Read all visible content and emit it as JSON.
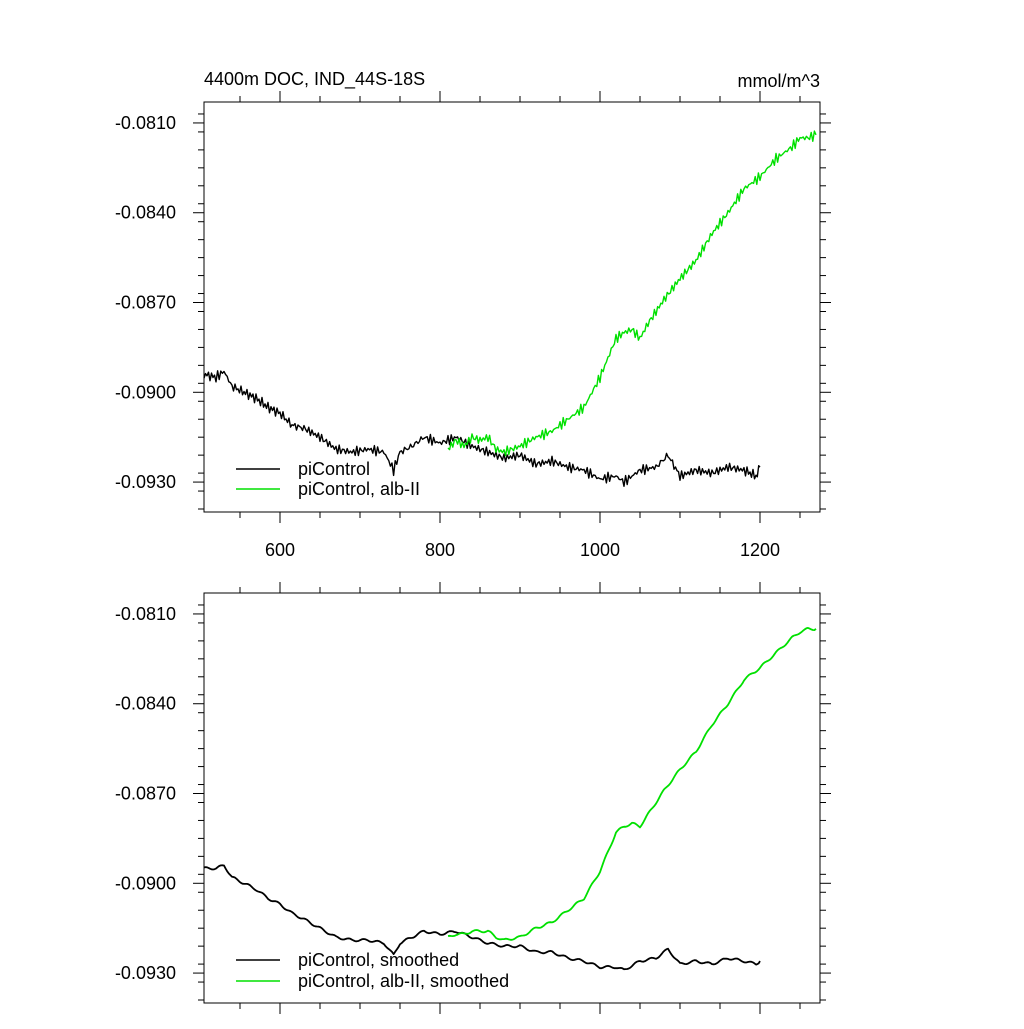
{
  "chart_data": [
    {
      "type": "line",
      "title": "4400m DOC, IND_44S-18S",
      "units": "mmol/m^3",
      "xlim": [
        505,
        1275
      ],
      "ylim": [
        -0.094,
        -0.0803
      ],
      "yticks": [
        -0.081,
        -0.084,
        -0.087,
        -0.09,
        -0.093
      ],
      "yticklabels": [
        "-0.0810",
        "-0.0840",
        "-0.0870",
        "-0.0900",
        "-0.0930"
      ],
      "xticks": [
        600,
        800,
        1000,
        1200
      ],
      "xticklabels": [
        "600",
        "800",
        "1000",
        "1200"
      ],
      "legend": "bottom-left",
      "series": [
        {
          "name": "piControl",
          "color": "#000000",
          "smoothed": false,
          "x": [
            505,
            520,
            530,
            540,
            555,
            570,
            585,
            600,
            615,
            630,
            650,
            670,
            690,
            710,
            730,
            742,
            750,
            765,
            780,
            800,
            820,
            840,
            860,
            880,
            900,
            920,
            940,
            960,
            980,
            1000,
            1020,
            1030,
            1050,
            1070,
            1085,
            1100,
            1120,
            1140,
            1160,
            1180,
            1195,
            1200
          ],
          "y": [
            -0.0894,
            -0.0895,
            -0.0893,
            -0.0898,
            -0.09,
            -0.0902,
            -0.0905,
            -0.0907,
            -0.0911,
            -0.0912,
            -0.0915,
            -0.0919,
            -0.092,
            -0.0919,
            -0.092,
            -0.0926,
            -0.092,
            -0.0918,
            -0.0915,
            -0.0917,
            -0.0915,
            -0.0918,
            -0.092,
            -0.0922,
            -0.0921,
            -0.0924,
            -0.0923,
            -0.0925,
            -0.0926,
            -0.0929,
            -0.0928,
            -0.093,
            -0.0926,
            -0.0925,
            -0.0921,
            -0.0928,
            -0.0926,
            -0.0927,
            -0.0925,
            -0.0926,
            -0.0928,
            -0.0925
          ]
        },
        {
          "name": "piControl, alb-II",
          "color": "#00e000",
          "smoothed": false,
          "x": [
            810,
            820,
            830,
            840,
            850,
            860,
            870,
            880,
            900,
            920,
            940,
            960,
            980,
            1000,
            1020,
            1030,
            1040,
            1050,
            1060,
            1080,
            1100,
            1120,
            1140,
            1160,
            1180,
            1200,
            1220,
            1240,
            1250,
            1260,
            1270
          ],
          "y": [
            -0.0919,
            -0.0916,
            -0.0918,
            -0.0915,
            -0.0916,
            -0.0915,
            -0.0919,
            -0.092,
            -0.0918,
            -0.0915,
            -0.0913,
            -0.0909,
            -0.0905,
            -0.0895,
            -0.0882,
            -0.088,
            -0.0879,
            -0.0882,
            -0.0877,
            -0.0869,
            -0.0862,
            -0.0856,
            -0.0847,
            -0.084,
            -0.0832,
            -0.0828,
            -0.0822,
            -0.0818,
            -0.0815,
            -0.0815,
            -0.0814
          ]
        }
      ]
    },
    {
      "type": "line",
      "title": "",
      "xlim": [
        505,
        1275
      ],
      "ylim": [
        -0.094,
        -0.0803
      ],
      "yticks": [
        -0.081,
        -0.084,
        -0.087,
        -0.09,
        -0.093
      ],
      "yticklabels": [
        "-0.0810",
        "-0.0840",
        "-0.0870",
        "-0.0900",
        "-0.0930"
      ],
      "xticks": [
        600,
        800,
        1000,
        1200
      ],
      "legend": "bottom-left",
      "series": [
        {
          "name": "piControl, smoothed",
          "color": "#000000",
          "smoothed": true,
          "x": [
            505,
            520,
            530,
            540,
            555,
            570,
            585,
            600,
            615,
            630,
            650,
            670,
            690,
            710,
            730,
            742,
            750,
            765,
            780,
            800,
            820,
            840,
            860,
            880,
            900,
            920,
            940,
            960,
            980,
            1000,
            1020,
            1030,
            1050,
            1070,
            1085,
            1100,
            1120,
            1140,
            1160,
            1180,
            1195,
            1200
          ],
          "y": [
            -0.0895,
            -0.0895,
            -0.0894,
            -0.0898,
            -0.09,
            -0.0902,
            -0.0905,
            -0.0907,
            -0.091,
            -0.0912,
            -0.0915,
            -0.0918,
            -0.0919,
            -0.0919,
            -0.092,
            -0.0924,
            -0.092,
            -0.0918,
            -0.0916,
            -0.0917,
            -0.0916,
            -0.0918,
            -0.092,
            -0.0921,
            -0.0921,
            -0.0923,
            -0.0923,
            -0.0925,
            -0.0926,
            -0.0928,
            -0.0928,
            -0.0929,
            -0.0926,
            -0.0925,
            -0.0922,
            -0.0927,
            -0.0926,
            -0.0927,
            -0.0925,
            -0.0926,
            -0.0927,
            -0.0926
          ]
        },
        {
          "name": "piControl, alb-II, smoothed",
          "color": "#00e000",
          "smoothed": true,
          "x": [
            810,
            820,
            830,
            840,
            850,
            860,
            870,
            880,
            900,
            920,
            940,
            960,
            980,
            1000,
            1020,
            1030,
            1040,
            1050,
            1060,
            1080,
            1100,
            1120,
            1140,
            1160,
            1180,
            1200,
            1220,
            1240,
            1250,
            1260,
            1270
          ],
          "y": [
            -0.0918,
            -0.0917,
            -0.0917,
            -0.0916,
            -0.0916,
            -0.0916,
            -0.0918,
            -0.0919,
            -0.0918,
            -0.0915,
            -0.0913,
            -0.0909,
            -0.0905,
            -0.0896,
            -0.0883,
            -0.0881,
            -0.088,
            -0.0881,
            -0.0877,
            -0.0869,
            -0.0862,
            -0.0856,
            -0.0847,
            -0.084,
            -0.0832,
            -0.0828,
            -0.0823,
            -0.0818,
            -0.0816,
            -0.0815,
            -0.0815
          ]
        }
      ]
    }
  ]
}
